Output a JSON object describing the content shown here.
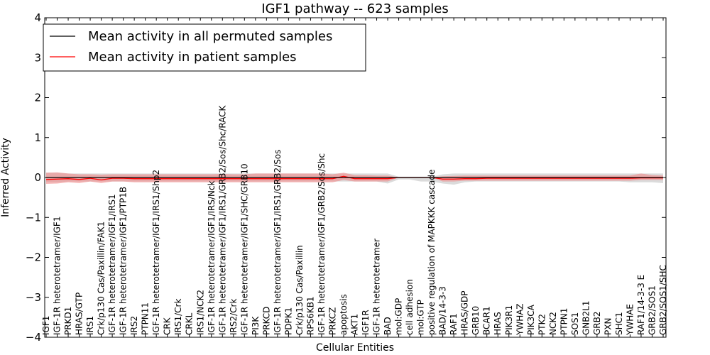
{
  "chart_data": {
    "type": "line",
    "title": "IGF1 pathway -- 623 samples",
    "xlabel": "Cellular Entities",
    "ylabel": "Inferred Activity",
    "ylim": [
      -4,
      4
    ],
    "yticks": [
      4,
      3,
      2,
      1,
      0,
      -1,
      -2,
      -3,
      -4
    ],
    "ytick_labels": [
      "4",
      "3",
      "2",
      "1",
      "0",
      "−1",
      "−2",
      "−3",
      "−4"
    ],
    "legend_position": "top-left",
    "grid": false,
    "categories": [
      "IGF1",
      "IGF-1R heterotetramer/IGF1",
      "PRKD1",
      "HRAS/GTP",
      "IRS1",
      "Crk/p130 Cas/Paxillin/FAK1",
      "IGF-1R heterotetramer/IGF1/IRS1",
      "IGF-1R heterotetramer/IGF1/PTP1B",
      "IRS2",
      "PTPN11",
      "IGF-1R heterotetramer/IGF1/IRS1/Shp2",
      "CRK",
      "IRS1/Crk",
      "CRKL",
      "IRS1/NCK2",
      "IGF-1R heterotetramer/IGF1/IRS/Nck",
      "IGF-1R heterotetramer/IGF1/IRS1/GRB2/Sos/Shc/RACK",
      "IRS2/Crk",
      "IGF-1R heterotetramer/IGF1/SHC/GRB10",
      "PI3K",
      "PRKCD",
      "IGF-1R heterotetramer/IGF1/IRS1/GRB2/Sos",
      "PDPK1",
      "Crk/p130 Cas/Paxillin",
      "RPS6KB1",
      "IGF-1R heterotetramer/IGF1/GRB2/Sos/Shc",
      "PRKCZ",
      "apoptosis",
      "AKT1",
      "IGF1R",
      "IGF-1R heterotetramer",
      "BAD",
      "mol:GDP",
      "cell adhesion",
      "mol:GTP",
      "positive regulation of MAPKKK cascade",
      "BAD/14-3-3",
      "RAF1",
      "HRAS/GDP",
      "GRB10",
      "BCAR1",
      "HRAS",
      "PIK3R1",
      "YWHAZ",
      "PIK3CA",
      "PTK2",
      "NCK2",
      "PTPN1",
      "SOS1",
      "GNB2L1",
      "GRB2",
      "PXN",
      "SHC1",
      "YWHAE",
      "RAF1/14-3-3 E",
      "GRB2/SOS1",
      "GRB2/SOS1/SHC"
    ],
    "series": [
      {
        "name": "Mean activity in all permuted samples",
        "color": "#000000",
        "band_color": "#999999",
        "mean": [
          0,
          0,
          0,
          0,
          0,
          0,
          0,
          0,
          0,
          0,
          0,
          0,
          0,
          0,
          0,
          0,
          0,
          0,
          0,
          0,
          0,
          0,
          0,
          0,
          0,
          0,
          0,
          0,
          0,
          0,
          0,
          0,
          0,
          0,
          0,
          0,
          0,
          0,
          0,
          0,
          0,
          0,
          0,
          0,
          0,
          0,
          0,
          0,
          0,
          0,
          0,
          0,
          0,
          0,
          0,
          0,
          0
        ],
        "band_upper": [
          0.12,
          0.12,
          0.1,
          0.1,
          0.1,
          0.1,
          0.1,
          0.1,
          0.1,
          0.1,
          0.1,
          0.1,
          0.1,
          0.1,
          0.1,
          0.1,
          0.1,
          0.1,
          0.1,
          0.1,
          0.1,
          0.1,
          0.1,
          0.1,
          0.1,
          0.1,
          0.1,
          0.1,
          0.1,
          0.1,
          0.1,
          0.1,
          0.02,
          0.02,
          0.02,
          0.02,
          0.08,
          0.1,
          0.1,
          0.1,
          0.1,
          0.1,
          0.1,
          0.1,
          0.1,
          0.1,
          0.1,
          0.1,
          0.1,
          0.1,
          0.1,
          0.1,
          0.1,
          0.1,
          0.1,
          0.1,
          0.1
        ],
        "band_lower": [
          -0.12,
          -0.12,
          -0.1,
          -0.1,
          -0.1,
          -0.1,
          -0.1,
          -0.1,
          -0.1,
          -0.1,
          -0.1,
          -0.1,
          -0.1,
          -0.1,
          -0.1,
          -0.1,
          -0.1,
          -0.1,
          -0.1,
          -0.1,
          -0.1,
          -0.1,
          -0.1,
          -0.1,
          -0.1,
          -0.1,
          -0.1,
          -0.1,
          -0.1,
          -0.1,
          -0.1,
          -0.15,
          -0.05,
          -0.05,
          -0.1,
          -0.1,
          -0.15,
          -0.18,
          -0.12,
          -0.1,
          -0.1,
          -0.1,
          -0.1,
          -0.1,
          -0.1,
          -0.1,
          -0.1,
          -0.1,
          -0.1,
          -0.1,
          -0.1,
          -0.1,
          -0.1,
          -0.12,
          -0.12,
          -0.12,
          -0.14
        ]
      },
      {
        "name": "Mean activity in patient samples",
        "color": "#ff0000",
        "band_color": "#f08080",
        "mean": [
          -0.05,
          -0.04,
          -0.03,
          -0.05,
          -0.02,
          -0.06,
          -0.02,
          -0.02,
          -0.03,
          -0.03,
          -0.03,
          -0.03,
          -0.03,
          -0.03,
          -0.03,
          -0.03,
          -0.03,
          -0.03,
          -0.03,
          -0.03,
          -0.03,
          -0.03,
          -0.03,
          -0.03,
          -0.03,
          -0.03,
          -0.03,
          0.03,
          -0.03,
          -0.03,
          -0.03,
          -0.03,
          0.0,
          0.0,
          0.0,
          0.0,
          -0.04,
          -0.04,
          -0.03,
          -0.03,
          -0.02,
          -0.02,
          -0.02,
          -0.02,
          -0.02,
          -0.02,
          -0.02,
          -0.02,
          -0.02,
          -0.02,
          -0.02,
          -0.02,
          -0.02,
          -0.02,
          -0.01,
          -0.01,
          -0.01
        ],
        "band_upper": [
          0.12,
          0.13,
          0.1,
          0.08,
          0.08,
          0.07,
          0.08,
          0.08,
          0.08,
          0.08,
          0.08,
          0.08,
          0.08,
          0.08,
          0.08,
          0.08,
          0.09,
          0.08,
          0.08,
          0.1,
          0.1,
          0.1,
          0.1,
          0.1,
          0.1,
          0.1,
          0.08,
          0.12,
          0.06,
          0.06,
          0.05,
          0.05,
          0.0,
          0.0,
          0.0,
          0.0,
          0.03,
          0.04,
          0.05,
          0.05,
          0.05,
          0.05,
          0.05,
          0.05,
          0.05,
          0.05,
          0.05,
          0.05,
          0.05,
          0.05,
          0.05,
          0.05,
          0.05,
          0.05,
          0.1,
          0.06,
          0.05
        ],
        "band_lower": [
          -0.16,
          -0.15,
          -0.12,
          -0.14,
          -0.1,
          -0.14,
          -0.1,
          -0.1,
          -0.12,
          -0.12,
          -0.12,
          -0.12,
          -0.12,
          -0.12,
          -0.12,
          -0.12,
          -0.12,
          -0.12,
          -0.12,
          -0.12,
          -0.12,
          -0.12,
          -0.12,
          -0.12,
          -0.12,
          -0.12,
          -0.12,
          -0.06,
          -0.1,
          -0.1,
          -0.1,
          -0.1,
          0.0,
          0.0,
          0.0,
          0.0,
          -0.1,
          -0.1,
          -0.08,
          -0.08,
          -0.08,
          -0.08,
          -0.08,
          -0.08,
          -0.08,
          -0.08,
          -0.08,
          -0.08,
          -0.08,
          -0.08,
          -0.08,
          -0.08,
          -0.08,
          -0.08,
          -0.06,
          -0.06,
          -0.06
        ]
      }
    ]
  }
}
